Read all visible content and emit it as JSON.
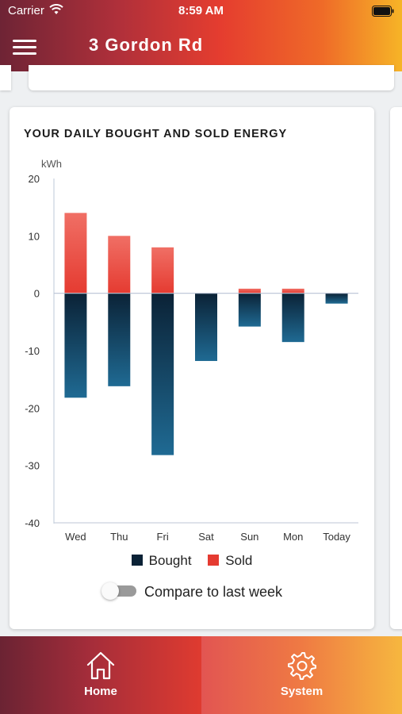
{
  "status_bar": {
    "carrier": "Carrier",
    "time": "8:59 AM"
  },
  "header": {
    "title": "3 Gordon Rd"
  },
  "card": {
    "title": "YOUR DAILY BOUGHT AND SOLD ENERGY",
    "legend": {
      "bought": "Bought",
      "sold": "Sold"
    },
    "compare_label": "Compare to last week",
    "compare_enabled": false
  },
  "colors": {
    "bought": "#0b2236",
    "bought_light": "#1f6a93",
    "sold": "#e53b31",
    "sold_light": "#f06f65"
  },
  "chart_data": {
    "type": "bar",
    "ylabel": "kWh",
    "ylim": [
      -40,
      20
    ],
    "yticks": [
      20,
      10,
      0,
      -10,
      -20,
      -30,
      -40
    ],
    "categories": [
      "Wed",
      "Thu",
      "Fri",
      "Sat",
      "Sun",
      "Mon",
      "Today"
    ],
    "series": [
      {
        "name": "Bought",
        "values": [
          -18.2,
          -16.2,
          -28.2,
          -11.8,
          -5.8,
          -8.5,
          -1.8
        ]
      },
      {
        "name": "Sold",
        "values": [
          14,
          10,
          8,
          0,
          0.8,
          0.8,
          0
        ]
      }
    ]
  },
  "bottom_nav": {
    "home": {
      "label": "Home",
      "icon": "home-icon"
    },
    "system": {
      "label": "System",
      "icon": "gear-icon"
    }
  }
}
